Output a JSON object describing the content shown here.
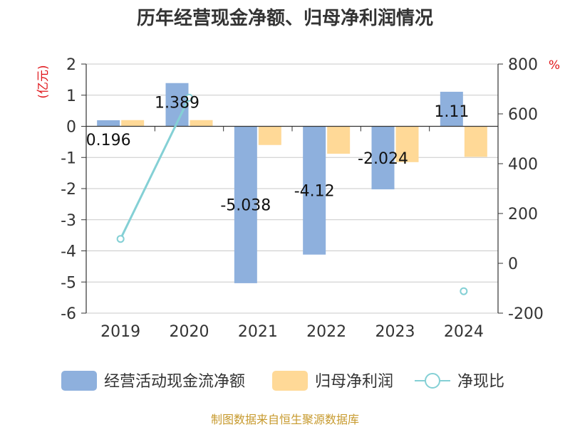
{
  "chart_data": {
    "type": "bar",
    "title": "历年经营现金净额、归母净利润情况",
    "categories": [
      "2019",
      "2020",
      "2021",
      "2022",
      "2023",
      "2024"
    ],
    "series": [
      {
        "name": "经营活动现金流净额",
        "axis": "left",
        "kind": "bar",
        "color": "#8eb0dd",
        "values": [
          0.196,
          1.389,
          -5.038,
          -4.12,
          -2.024,
          1.11
        ],
        "labels": [
          "0.196",
          "1.389",
          "-5.038",
          "-4.12",
          "-2.024",
          "1.11"
        ]
      },
      {
        "name": "归母净利润",
        "axis": "left",
        "kind": "bar",
        "color": "#ffd997",
        "values": [
          0.2,
          0.2,
          -0.6,
          -0.88,
          -1.15,
          -0.98
        ]
      },
      {
        "name": "净现比",
        "axis": "right",
        "kind": "line",
        "color": "#84d0d5",
        "values": [
          98,
          665,
          null,
          null,
          null,
          -112
        ]
      }
    ],
    "left_axis": {
      "unit": "(亿元)",
      "ylim": [
        -6,
        2
      ],
      "ticks": [
        "2",
        "1",
        "0",
        "-1",
        "-2",
        "-3",
        "-4",
        "-5",
        "-6"
      ]
    },
    "right_axis": {
      "unit": "%",
      "ylim": [
        -200,
        800
      ],
      "ticks": [
        "800",
        "600",
        "400",
        "200",
        "0",
        "-200"
      ]
    },
    "legend": [
      "经营活动现金流净额",
      "归母净利润",
      "净现比"
    ],
    "source": "制图数据来自恒生聚源数据库"
  }
}
